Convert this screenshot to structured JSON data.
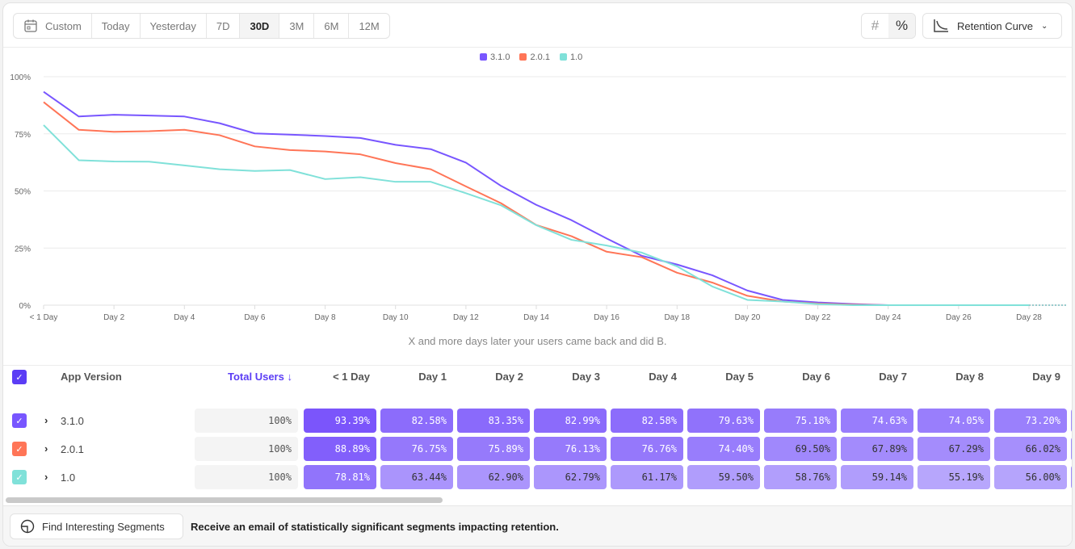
{
  "toolbar": {
    "date_ranges": [
      "Custom",
      "Today",
      "Yesterday",
      "7D",
      "30D",
      "3M",
      "6M",
      "12M"
    ],
    "active_range": "30D",
    "calendar_icon": "calendar-icon",
    "count_toggle": "#",
    "percent_toggle": "%",
    "active_toggle": "percent",
    "chart_type": "Retention Curve"
  },
  "colors": {
    "3.1.0": "#7856ff",
    "2.0.1": "#ff7557",
    "1.0": "#80e1d9",
    "accent": "#5b3df5"
  },
  "chart_data": {
    "type": "line",
    "x_ticks": [
      "< 1 Day",
      "Day 2",
      "Day 4",
      "Day 6",
      "Day 8",
      "Day 10",
      "Day 12",
      "Day 14",
      "Day 16",
      "Day 18",
      "Day 20",
      "Day 22",
      "Day 24",
      "Day 26",
      "Day 28"
    ],
    "x": [
      "< 1 Day",
      "Day 1",
      "Day 2",
      "Day 3",
      "Day 4",
      "Day 5",
      "Day 6",
      "Day 7",
      "Day 8",
      "Day 9",
      "Day 10",
      "Day 11",
      "Day 12",
      "Day 13",
      "Day 14",
      "Day 15",
      "Day 16",
      "Day 17",
      "Day 18",
      "Day 19",
      "Day 20",
      "Day 21",
      "Day 22",
      "Day 23",
      "Day 24",
      "Day 25",
      "Day 26",
      "Day 27",
      "Day 28"
    ],
    "y_ticks": [
      "0%",
      "25%",
      "50%",
      "75%",
      "100%"
    ],
    "ylim": [
      0,
      100
    ],
    "grid": true,
    "legend": "top-center",
    "xlabel": "X and more days later your users came back and did B.",
    "series": [
      {
        "name": "3.1.0",
        "color": "#7856ff",
        "values": [
          93.39,
          82.58,
          83.35,
          82.99,
          82.58,
          79.63,
          75.18,
          74.63,
          74.05,
          73.2,
          70.2,
          68.3,
          62.4,
          52.2,
          43.9,
          37.2,
          29.2,
          21.6,
          17.8,
          13.1,
          6.4,
          2.3,
          1.2,
          0.5,
          0,
          0,
          0,
          0,
          0
        ]
      },
      {
        "name": "2.0.1",
        "color": "#ff7557",
        "values": [
          88.89,
          76.75,
          75.89,
          76.13,
          76.76,
          74.4,
          69.5,
          67.89,
          67.29,
          66.02,
          62.2,
          59.5,
          52.0,
          44.6,
          35.1,
          30.2,
          23.4,
          21.0,
          14.2,
          9.9,
          4.1,
          1.6,
          0.7,
          0.2,
          0,
          0,
          0,
          0,
          0
        ]
      },
      {
        "name": "1.0",
        "color": "#80e1d9",
        "values": [
          78.81,
          63.44,
          62.9,
          62.79,
          61.17,
          59.5,
          58.76,
          59.14,
          55.19,
          56.0,
          54.0,
          54.0,
          49.0,
          43.7,
          35.0,
          28.6,
          26.1,
          23.0,
          17.0,
          8.2,
          2.3,
          1.6,
          0.5,
          0,
          0,
          0,
          0,
          0,
          0
        ]
      }
    ]
  },
  "table": {
    "headers": {
      "name": "App Version",
      "total": "Total Users ↓",
      "days": [
        "< 1 Day",
        "Day 1",
        "Day 2",
        "Day 3",
        "Day 4",
        "Day 5",
        "Day 6",
        "Day 7",
        "Day 8",
        "Day 9"
      ]
    },
    "rows": [
      {
        "name": "3.1.0",
        "total": "100%",
        "cells": [
          "93.39%",
          "82.58%",
          "83.35%",
          "82.99%",
          "82.58%",
          "79.63%",
          "75.18%",
          "74.63%",
          "74.05%",
          "73.20%"
        ]
      },
      {
        "name": "2.0.1",
        "total": "100%",
        "cells": [
          "88.89%",
          "76.75%",
          "75.89%",
          "76.13%",
          "76.76%",
          "74.40%",
          "69.50%",
          "67.89%",
          "67.29%",
          "66.02%"
        ]
      },
      {
        "name": "1.0",
        "total": "100%",
        "cells": [
          "78.81%",
          "63.44%",
          "62.90%",
          "62.79%",
          "61.17%",
          "59.50%",
          "58.76%",
          "59.14%",
          "55.19%",
          "56.00%"
        ]
      }
    ]
  },
  "bottom": {
    "button": "Find Interesting Segments",
    "message": "Receive an email of statistically significant segments impacting retention."
  }
}
